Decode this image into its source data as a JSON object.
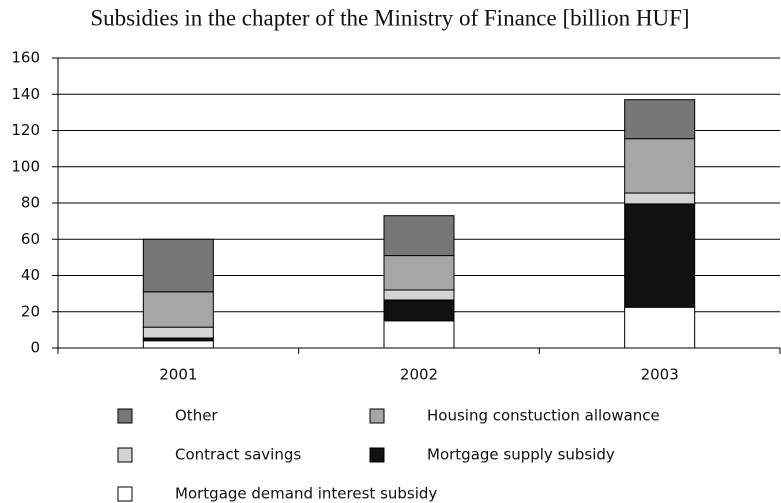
{
  "chart_data": {
    "type": "stacked_bar",
    "title": "Subsidies in the chapter of the Ministry of Finance [billion HUF]",
    "categories": [
      "2001",
      "2002",
      "2003"
    ],
    "series": [
      {
        "name": "Other",
        "color": "#777777",
        "values": [
          29,
          22,
          21.5
        ]
      },
      {
        "name": "Housing constuction allowance",
        "color": "#a6a6a6",
        "values": [
          19.5,
          19,
          30
        ]
      },
      {
        "name": "Contract savings",
        "color": "#d4d4d4",
        "values": [
          6,
          5.5,
          6
        ]
      },
      {
        "name": "Mortgage supply subsidy",
        "color": "#111111",
        "values": [
          1.5,
          11.5,
          57
        ]
      },
      {
        "name": "Mortgage demand interest subsidy",
        "color": "#ffffff",
        "values": [
          4,
          15,
          22.5
        ]
      }
    ],
    "ylim": [
      0,
      160
    ],
    "yticks": [
      0,
      20,
      40,
      60,
      80,
      100,
      120,
      140,
      160
    ],
    "grid": true,
    "legend": "bottom"
  }
}
